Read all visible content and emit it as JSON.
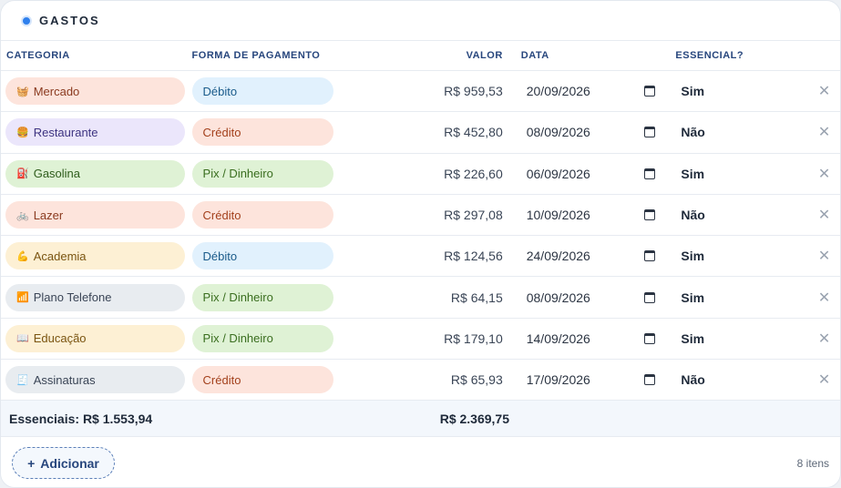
{
  "card": {
    "title": "GASTOS"
  },
  "columns": {
    "category": "CATEGORIA",
    "payment": "FORMA DE PAGAMENTO",
    "value": "VALOR",
    "date": "DATA",
    "essential": "ESSENCIAL?"
  },
  "rows": [
    {
      "icon": "🧺",
      "category": "Mercado",
      "cat_bg": "#fde4dc",
      "cat_fg": "#8a3a1f",
      "payment": "Débito",
      "pay_bg": "#e1f1fd",
      "pay_fg": "#1a5b8a",
      "value": "R$ 959,53",
      "date": "20/09/2026",
      "essential": "Sim"
    },
    {
      "icon": "🍔",
      "category": "Restaurante",
      "cat_bg": "#ebe6fb",
      "cat_fg": "#3d3380",
      "payment": "Crédito",
      "pay_bg": "#fde4dc",
      "pay_fg": "#a3401c",
      "value": "R$ 452,80",
      "date": "08/09/2026",
      "essential": "Não"
    },
    {
      "icon": "⛽",
      "category": "Gasolina",
      "cat_bg": "#dff2d5",
      "cat_fg": "#2e5c1b",
      "payment": "Pix / Dinheiro",
      "pay_bg": "#dff2d5",
      "pay_fg": "#3a6e1f",
      "value": "R$ 226,60",
      "date": "06/09/2026",
      "essential": "Sim"
    },
    {
      "icon": "🚲",
      "category": "Lazer",
      "cat_bg": "#fde4dc",
      "cat_fg": "#8a3a1f",
      "payment": "Crédito",
      "pay_bg": "#fde4dc",
      "pay_fg": "#a3401c",
      "value": "R$ 297,08",
      "date": "10/09/2026",
      "essential": "Não"
    },
    {
      "icon": "💪",
      "category": "Academia",
      "cat_bg": "#fdf0d4",
      "cat_fg": "#7a5410",
      "payment": "Débito",
      "pay_bg": "#e1f1fd",
      "pay_fg": "#1a5b8a",
      "value": "R$ 124,56",
      "date": "24/09/2026",
      "essential": "Sim"
    },
    {
      "icon": "📶",
      "category": "Plano Telefone",
      "cat_bg": "#e8ecf0",
      "cat_fg": "#3a4556",
      "payment": "Pix / Dinheiro",
      "pay_bg": "#dff2d5",
      "pay_fg": "#3a6e1f",
      "value": "R$ 64,15",
      "date": "08/09/2026",
      "essential": "Sim"
    },
    {
      "icon": "📖",
      "category": "Educação",
      "cat_bg": "#fdf0d4",
      "cat_fg": "#7a5410",
      "payment": "Pix / Dinheiro",
      "pay_bg": "#dff2d5",
      "pay_fg": "#3a6e1f",
      "value": "R$ 179,10",
      "date": "14/09/2026",
      "essential": "Sim"
    },
    {
      "icon": "🧾",
      "category": "Assinaturas",
      "cat_bg": "#e8ecf0",
      "cat_fg": "#3a4556",
      "payment": "Crédito",
      "pay_bg": "#fde4dc",
      "pay_fg": "#a3401c",
      "value": "R$ 65,93",
      "date": "17/09/2026",
      "essential": "Não"
    }
  ],
  "totals": {
    "essentials": "Essenciais: R$ 1.553,94",
    "sum": "R$ 2.369,75"
  },
  "footer": {
    "add_icon": "+",
    "add_label": "Adicionar",
    "count": "8 itens"
  },
  "icons": {
    "delete": "✕",
    "calendar": "calendar-icon"
  }
}
